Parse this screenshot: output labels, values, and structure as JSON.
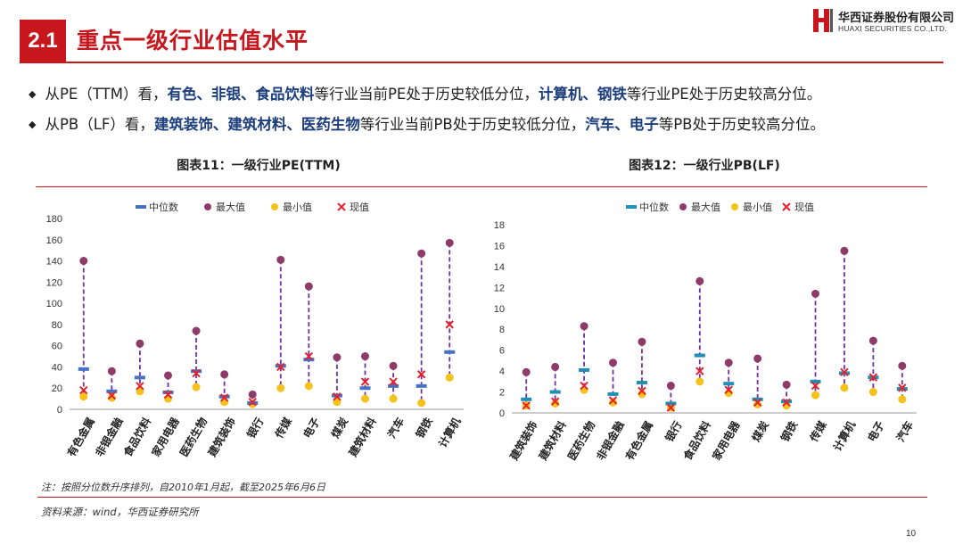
{
  "header": {
    "section_number": "2.1",
    "title": "重点一级行业估值水平",
    "logo_cn": "华西证券股份有限公司",
    "logo_en": "HUAXI SECURITIES CO.,LTD."
  },
  "bullets": [
    [
      {
        "t": "从PE（TTM）看，",
        "b": false
      },
      {
        "t": "有色、非银、食品饮料",
        "b": true
      },
      {
        "t": "等行业当前PE处于历史较低分位，",
        "b": false
      },
      {
        "t": "计算机、钢铁",
        "b": true
      },
      {
        "t": "等行业PE处于历史较高分位。",
        "b": false
      }
    ],
    [
      {
        "t": "从PB（LF）看，",
        "b": false
      },
      {
        "t": "建筑装饰、建筑材料、医药生物",
        "b": true
      },
      {
        "t": "等行业当前PB处于历史较低分位，",
        "b": false
      },
      {
        "t": "汽车、电子",
        "b": true
      },
      {
        "t": "等PB处于历史较高分位。",
        "b": false
      }
    ]
  ],
  "bullet_marker": "◆",
  "colors": {
    "brand_red": "#c8161d",
    "median_pe": "#4472c4",
    "median_pb": "#1f8fb5",
    "max": "#8e3b6a",
    "min": "#f5c21b",
    "current": "#e8202a",
    "range_line": "#7030a0"
  },
  "chart_data": [
    {
      "type": "scatter",
      "title": "图表11：一级行业PE(TTM)",
      "legend": [
        "中位数",
        "最大值",
        "最小值",
        "现值"
      ],
      "legend_position": "top",
      "ylim": [
        0,
        180
      ],
      "yticks": [
        0,
        20,
        40,
        60,
        80,
        100,
        120,
        140,
        160,
        180
      ],
      "categories": [
        "有色金属",
        "非银金融",
        "食品饮料",
        "家用电器",
        "医药生物",
        "建筑装饰",
        "银行",
        "传媒",
        "电子",
        "煤炭",
        "建筑材料",
        "汽车",
        "钢铁",
        "计算机"
      ],
      "series": [
        {
          "name": "中位数",
          "values": [
            38,
            17,
            30,
            16,
            36,
            12,
            6,
            41,
            47,
            13,
            20,
            22,
            22,
            54
          ]
        },
        {
          "name": "最大值",
          "values": [
            140,
            36,
            62,
            32,
            74,
            33,
            14,
            141,
            116,
            49,
            50,
            41,
            147,
            157
          ]
        },
        {
          "name": "最小值",
          "values": [
            12,
            11,
            17,
            10,
            21,
            7,
            5,
            20,
            22,
            7,
            10,
            10,
            6,
            30
          ]
        },
        {
          "name": "现值",
          "values": [
            18,
            13,
            22,
            14,
            34,
            11,
            7,
            40,
            50,
            12,
            26,
            26,
            33,
            80
          ]
        }
      ]
    },
    {
      "type": "scatter",
      "title": "图表12：一级行业PB(LF)",
      "legend": [
        "中位数",
        "最大值",
        "最小值",
        "现值"
      ],
      "legend_position": "top",
      "ylim": [
        0,
        18
      ],
      "yticks": [
        0,
        2,
        4,
        6,
        8,
        10,
        12,
        14,
        16,
        18
      ],
      "categories": [
        "建筑装饰",
        "建筑材料",
        "医药生物",
        "非银金融",
        "有色金属",
        "银行",
        "食品饮料",
        "家用电器",
        "煤炭",
        "钢铁",
        "传媒",
        "计算机",
        "电子",
        "汽车"
      ],
      "series": [
        {
          "name": "中位数",
          "values": [
            1.3,
            2.0,
            4.1,
            1.8,
            2.9,
            0.9,
            5.5,
            2.8,
            1.3,
            1.1,
            3.0,
            3.8,
            3.4,
            2.3
          ]
        },
        {
          "name": "最大值",
          "values": [
            3.9,
            4.4,
            8.3,
            4.8,
            6.8,
            2.6,
            12.6,
            4.8,
            5.2,
            2.7,
            11.4,
            15.5,
            6.9,
            4.5
          ]
        },
        {
          "name": "最小值",
          "values": [
            0.7,
            0.9,
            2.2,
            1.0,
            1.8,
            0.5,
            3.0,
            1.9,
            0.8,
            0.7,
            1.7,
            2.4,
            2.0,
            1.3
          ]
        },
        {
          "name": "现值",
          "values": [
            0.7,
            1.1,
            2.6,
            1.2,
            2.1,
            0.5,
            4.0,
            2.2,
            1.0,
            1.0,
            2.6,
            3.9,
            3.4,
            2.4
          ]
        }
      ]
    }
  ],
  "footer": {
    "note": "注：按照分位数升序排列，自2010年1月起，截至2025年6月6日",
    "source": "资料来源：wind，华西证券研究所",
    "page": "10"
  }
}
